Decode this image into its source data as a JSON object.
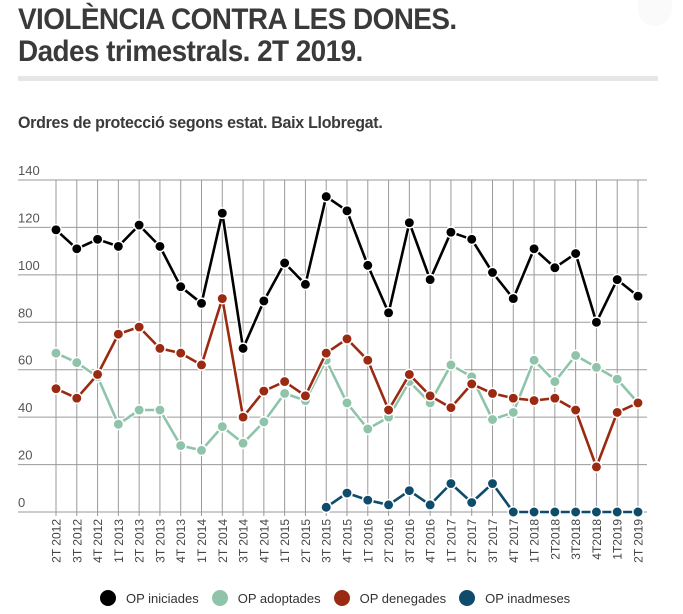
{
  "header": {
    "title_line1": "VIOLÈNCIA CONTRA LES DONES.",
    "title_line2": "Dades trimestrals. 2T 2019."
  },
  "chart_data": {
    "type": "line",
    "title": "Ordres de protecció segons estat. Baix Llobregat.",
    "xlabel": "",
    "ylabel": "",
    "ylim": [
      0,
      140
    ],
    "yticks": [
      0,
      20,
      40,
      60,
      80,
      100,
      120,
      140
    ],
    "grid": true,
    "legend_position": "bottom",
    "categories": [
      "2T 2012",
      "3T 2012",
      "4T 2012",
      "1T 2013",
      "2T 2013",
      "3T 2013",
      "4T 2013",
      "1T 2014",
      "2T 2014",
      "3T 2014",
      "4T 2014",
      "1T 2015",
      "2T 2015",
      "3T 2015",
      "4T 2015",
      "1T 2016",
      "2T 2016",
      "3T 2016",
      "4T 2016",
      "1T 2017",
      "2T 2017",
      "3T 2017",
      "4T 2017",
      "1T 2018",
      "2T2018",
      "3T2018",
      "4T2018",
      "1T2019",
      "2T 2019"
    ],
    "series": [
      {
        "name": "OP iniciades",
        "color": "#000000",
        "values": [
          119,
          111,
          115,
          112,
          121,
          112,
          95,
          88,
          126,
          69,
          89,
          105,
          96,
          133,
          127,
          104,
          84,
          122,
          98,
          118,
          115,
          101,
          90,
          111,
          103,
          109,
          80,
          98,
          91
        ]
      },
      {
        "name": "OP adoptades",
        "color": "#8fc4ab",
        "values": [
          67,
          63,
          57,
          37,
          43,
          43,
          28,
          26,
          36,
          29,
          38,
          50,
          47,
          64,
          46,
          35,
          40,
          55,
          46,
          62,
          57,
          39,
          42,
          64,
          55,
          66,
          61,
          56,
          46
        ]
      },
      {
        "name": "OP denegades",
        "color": "#9a2a12",
        "values": [
          52,
          48,
          58,
          75,
          78,
          69,
          67,
          62,
          90,
          40,
          51,
          55,
          49,
          67,
          73,
          64,
          43,
          58,
          49,
          44,
          54,
          50,
          48,
          47,
          48,
          43,
          19,
          42,
          46
        ]
      },
      {
        "name": "OP inadmeses",
        "color": "#0f4c6b",
        "values": [
          null,
          null,
          null,
          null,
          null,
          null,
          null,
          null,
          null,
          null,
          null,
          null,
          null,
          2,
          8,
          5,
          3,
          9,
          3,
          12,
          4,
          12,
          0,
          0,
          0,
          0,
          0,
          0,
          0
        ]
      }
    ]
  },
  "colors": {
    "grid": "#9a9a9a",
    "text": "#3a3a3a",
    "divider": "#e6e6e6"
  }
}
